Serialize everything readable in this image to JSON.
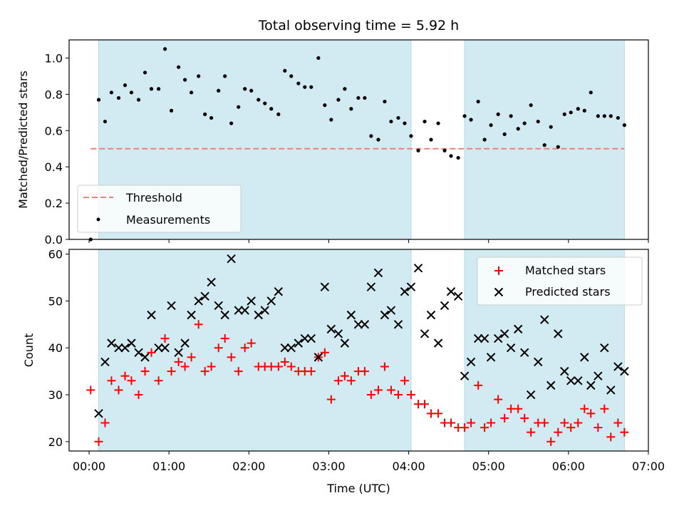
{
  "chart_data": [
    {
      "type": "scatter",
      "title": "Total observing time = 5.92 h",
      "xlabel": "",
      "ylabel": "Matched/Predicted stars",
      "xlim_hours": [
        -0.25,
        7.0
      ],
      "ylim": [
        0.0,
        1.1
      ],
      "yticks": [
        0.0,
        0.2,
        0.4,
        0.6,
        0.8,
        1.0
      ],
      "ytick_labels": [
        "0.0",
        "0.2",
        "0.4",
        "0.6",
        "0.8",
        "1.0"
      ],
      "xticks_hours": [
        0,
        1,
        2,
        3,
        4,
        5,
        6,
        7
      ],
      "grid": false,
      "shaded_intervals_hours": [
        [
          0.12,
          4.03
        ],
        [
          4.7,
          6.7
        ]
      ],
      "shade_color": "#add8e6",
      "threshold": {
        "name": "Threshold",
        "value": 0.5,
        "from_hours": 0.02,
        "to_hours": 6.7,
        "color": "#f08080"
      },
      "series": [
        {
          "name": "Measurements",
          "marker": "dot",
          "color": "#000000",
          "x_hours": [
            0.02,
            0.12,
            0.2,
            0.28,
            0.37,
            0.45,
            0.53,
            0.62,
            0.7,
            0.78,
            0.87,
            0.95,
            1.03,
            1.12,
            1.2,
            1.28,
            1.37,
            1.45,
            1.53,
            1.62,
            1.7,
            1.78,
            1.87,
            1.95,
            2.03,
            2.12,
            2.2,
            2.28,
            2.37,
            2.45,
            2.53,
            2.62,
            2.7,
            2.78,
            2.87,
            2.95,
            3.03,
            3.12,
            3.2,
            3.28,
            3.37,
            3.45,
            3.53,
            3.62,
            3.7,
            3.78,
            3.87,
            3.95,
            4.03,
            4.12,
            4.2,
            4.28,
            4.37,
            4.45,
            4.53,
            4.62,
            4.7,
            4.78,
            4.87,
            4.95,
            5.03,
            5.12,
            5.2,
            5.28,
            5.37,
            5.45,
            5.53,
            5.62,
            5.7,
            5.78,
            5.87,
            5.95,
            6.03,
            6.12,
            6.2,
            6.28,
            6.37,
            6.45,
            6.53,
            6.62,
            6.7
          ],
          "values": [
            0.0,
            0.77,
            0.65,
            0.81,
            0.78,
            0.85,
            0.81,
            0.77,
            0.92,
            0.83,
            0.83,
            1.05,
            0.71,
            0.95,
            0.88,
            0.81,
            0.9,
            0.69,
            0.67,
            0.82,
            0.9,
            0.64,
            0.73,
            0.83,
            0.82,
            0.77,
            0.75,
            0.72,
            0.69,
            0.93,
            0.9,
            0.86,
            0.84,
            0.84,
            1.0,
            0.74,
            0.66,
            0.77,
            0.83,
            0.72,
            0.78,
            0.78,
            0.57,
            0.55,
            0.76,
            0.65,
            0.67,
            0.64,
            0.57,
            0.49,
            0.65,
            0.55,
            0.64,
            0.49,
            0.46,
            0.45,
            0.68,
            0.66,
            0.76,
            0.55,
            0.63,
            0.69,
            0.58,
            0.68,
            0.61,
            0.64,
            0.74,
            0.65,
            0.52,
            0.62,
            0.51,
            0.69,
            0.7,
            0.72,
            0.71,
            0.81,
            0.68,
            0.68,
            0.68,
            0.67,
            0.63
          ]
        }
      ],
      "legend_entries": [
        "Threshold",
        "Measurements"
      ],
      "legend_position": "lower-left"
    },
    {
      "type": "scatter",
      "title": "",
      "xlabel": "Time (UTC)",
      "ylabel": "Count",
      "xlim_hours": [
        -0.25,
        7.0
      ],
      "ylim": [
        18,
        61
      ],
      "yticks": [
        20,
        30,
        40,
        50,
        60
      ],
      "ytick_labels": [
        "20",
        "30",
        "40",
        "50",
        "60"
      ],
      "xticks_hours": [
        0,
        1,
        2,
        3,
        4,
        5,
        6,
        7
      ],
      "xtick_labels": [
        "00:00",
        "01:00",
        "02:00",
        "03:00",
        "04:00",
        "05:00",
        "06:00",
        "07:00"
      ],
      "grid": false,
      "shaded_intervals_hours": [
        [
          0.12,
          4.03
        ],
        [
          4.7,
          6.7
        ]
      ],
      "shade_color": "#add8e6",
      "x_hours": [
        0.02,
        0.12,
        0.2,
        0.28,
        0.37,
        0.45,
        0.53,
        0.62,
        0.7,
        0.78,
        0.87,
        0.95,
        1.03,
        1.12,
        1.2,
        1.28,
        1.37,
        1.45,
        1.53,
        1.62,
        1.7,
        1.78,
        1.87,
        1.95,
        2.03,
        2.12,
        2.2,
        2.28,
        2.37,
        2.45,
        2.53,
        2.62,
        2.7,
        2.78,
        2.87,
        2.95,
        3.03,
        3.12,
        3.2,
        3.28,
        3.37,
        3.45,
        3.53,
        3.62,
        3.7,
        3.78,
        3.87,
        3.95,
        4.03,
        4.12,
        4.2,
        4.28,
        4.37,
        4.45,
        4.53,
        4.62,
        4.7,
        4.78,
        4.87,
        4.95,
        5.03,
        5.12,
        5.2,
        5.28,
        5.37,
        5.45,
        5.53,
        5.62,
        5.7,
        5.78,
        5.87,
        5.95,
        6.03,
        6.12,
        6.2,
        6.28,
        6.37,
        6.45,
        6.53,
        6.62,
        6.7
      ],
      "series": [
        {
          "name": "Matched stars",
          "marker": "plus",
          "color": "#ff0000",
          "values": [
            31,
            20,
            24,
            33,
            31,
            34,
            33,
            30,
            35,
            39,
            33,
            42,
            35,
            37,
            36,
            38,
            45,
            35,
            36,
            40,
            42,
            38,
            35,
            40,
            41,
            36,
            36,
            36,
            36,
            37,
            36,
            35,
            35,
            35,
            38,
            39,
            29,
            33,
            34,
            33,
            35,
            35,
            30,
            31,
            36,
            31,
            30,
            33,
            30,
            28,
            28,
            26,
            26,
            24,
            24,
            23,
            23,
            24,
            32,
            23,
            24,
            29,
            25,
            27,
            27,
            25,
            22,
            24,
            24,
            20,
            22,
            24,
            23,
            24,
            27,
            26,
            23,
            27,
            21,
            24,
            22
          ]
        },
        {
          "name": "Predicted stars",
          "marker": "x",
          "color": "#000000",
          "values": [
            null,
            26,
            37,
            41,
            40,
            40,
            41,
            39,
            38,
            47,
            40,
            40,
            49,
            39,
            41,
            47,
            50,
            51,
            54,
            49,
            47,
            59,
            48,
            48,
            50,
            47,
            48,
            50,
            52,
            40,
            40,
            41,
            42,
            42,
            38,
            53,
            44,
            43,
            41,
            47,
            45,
            45,
            53,
            56,
            47,
            48,
            45,
            52,
            53,
            57,
            43,
            47,
            41,
            49,
            52,
            51,
            34,
            37,
            42,
            42,
            38,
            42,
            43,
            40,
            44,
            39,
            30,
            37,
            46,
            32,
            43,
            35,
            33,
            33,
            38,
            32,
            34,
            40,
            31,
            36,
            35
          ]
        }
      ],
      "legend_entries": [
        "Matched stars",
        "Predicted stars"
      ],
      "legend_position": "upper-right"
    }
  ]
}
